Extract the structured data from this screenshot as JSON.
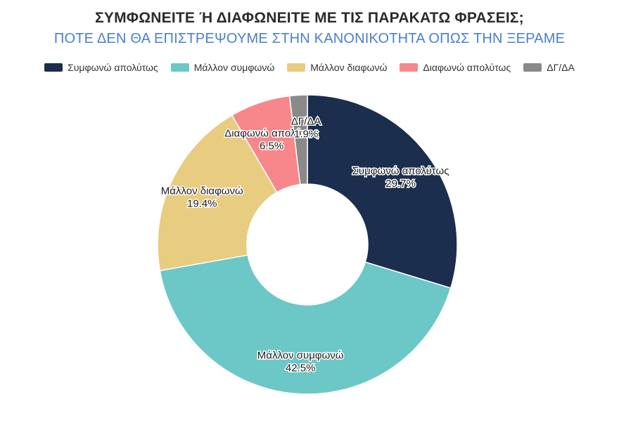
{
  "chart_data": {
    "type": "pie",
    "variant": "donut",
    "title": "ΣΥΜΦΩΝΕΙΤΕ Ή ΔΙΑΦΩΝΕΙΤΕ ΜΕ ΤΙΣ ΠΑΡΑΚΑΤΩ ΦΡΑΣΕΙΣ;",
    "subtitle": "ΠΟΤΕ ΔΕΝ ΘΑ ΕΠΙΣΤΡΕΨΟΥΜΕ ΣΤΗΝ ΚΑΝΟΝΙΚΟΤΗΤΑ ΟΠΩΣ ΤΗΝ ΞΕΡΑΜΕ",
    "legend_position": "top",
    "slices": [
      {
        "name": "Συμφωνώ απολύτως",
        "value": 29.7,
        "label": "29.7%",
        "color": "#1c2e4e"
      },
      {
        "name": "Μάλλον συμφωνώ",
        "value": 42.5,
        "label": "42.5%",
        "color": "#6cc7c7"
      },
      {
        "name": "Μάλλον διαφωνώ",
        "value": 19.4,
        "label": "19.4%",
        "color": "#e8cc80"
      },
      {
        "name": "Διαφωνώ απολύτως",
        "value": 6.5,
        "label": "6.5%",
        "color": "#f7878a"
      },
      {
        "name": "ΔΓ/ΔΑ",
        "value": 1.9,
        "label": "1.9%",
        "color": "#8a8a8a"
      }
    ]
  }
}
